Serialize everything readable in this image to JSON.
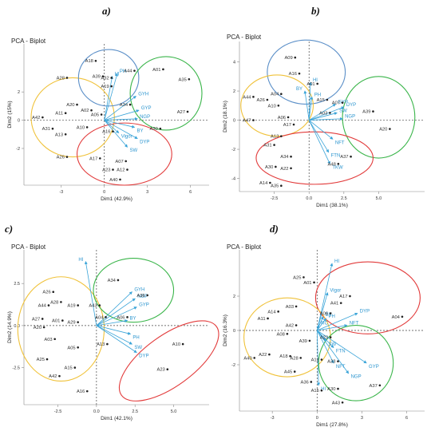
{
  "chart_data": [
    {
      "type": "scatter",
      "panel_label": "a)",
      "title": "PCA - Biplot",
      "xlabel": "Dim1 (42.9%)",
      "ylabel": "Dim2 (15%)",
      "xlim": [
        -5.6,
        7.3
      ],
      "ylim": [
        -4.6,
        5.4
      ],
      "xticks": [
        -3,
        0,
        3,
        6
      ],
      "yticks": [
        -2,
        0,
        2
      ],
      "x_tick_labels": [
        "-3",
        "0",
        "3",
        "6"
      ],
      "y_tick_labels": [
        "-2",
        "0",
        "2"
      ],
      "points": [
        {
          "label": "A18",
          "x": -0.6,
          "y": 4.2
        },
        {
          "label": "A39",
          "x": -0.1,
          "y": 3.1
        },
        {
          "label": "A32",
          "x": 0.5,
          "y": 3.0
        },
        {
          "label": "A19",
          "x": 0.5,
          "y": 2.4
        },
        {
          "label": "A28",
          "x": -2.6,
          "y": 3.0
        },
        {
          "label": "A44",
          "x": 2.1,
          "y": 3.5
        },
        {
          "label": "A01",
          "x": 4.1,
          "y": 3.6
        },
        {
          "label": "A35",
          "x": 5.9,
          "y": 2.9
        },
        {
          "label": "A27",
          "x": 5.8,
          "y": 0.6
        },
        {
          "label": "A34",
          "x": 1.8,
          "y": 1.1
        },
        {
          "label": "A30",
          "x": 3.9,
          "y": -0.6
        },
        {
          "label": "A20",
          "x": -1.9,
          "y": 1.1
        },
        {
          "label": "A11",
          "x": -2.7,
          "y": 0.5
        },
        {
          "label": "A02",
          "x": -0.9,
          "y": 0.7
        },
        {
          "label": "A05",
          "x": -0.2,
          "y": 0.4
        },
        {
          "label": "A42",
          "x": -4.3,
          "y": 0.2
        },
        {
          "label": "A31",
          "x": -3.6,
          "y": -0.6
        },
        {
          "label": "A13",
          "x": -2.7,
          "y": -1.0
        },
        {
          "label": "A10",
          "x": -1.2,
          "y": -0.5
        },
        {
          "label": "A26",
          "x": -2.6,
          "y": -2.6
        },
        {
          "label": "A16",
          "x": 0.6,
          "y": -0.8
        },
        {
          "label": "A17",
          "x": -0.3,
          "y": -2.7
        },
        {
          "label": "A23",
          "x": 0.6,
          "y": -3.5
        },
        {
          "label": "A07",
          "x": 1.5,
          "y": -2.9
        },
        {
          "label": "A12",
          "x": 1.6,
          "y": -3.5
        },
        {
          "label": "A40",
          "x": 1.1,
          "y": -4.2
        }
      ],
      "vectors": [
        {
          "label": "HI",
          "x": 0.55,
          "y": 3.1
        },
        {
          "label": "PH",
          "x": 0.9,
          "y": 3.3
        },
        {
          "label": "GYH",
          "x": 2.2,
          "y": 1.7
        },
        {
          "label": "GYP",
          "x": 2.4,
          "y": 0.7
        },
        {
          "label": "NGP",
          "x": 2.3,
          "y": 0.1
        },
        {
          "label": "BY",
          "x": 2.1,
          "y": -0.5
        },
        {
          "label": "Vigor",
          "x": 1.0,
          "y": -0.9
        },
        {
          "label": "DYP",
          "x": 2.3,
          "y": -1.3
        },
        {
          "label": "SW",
          "x": 1.6,
          "y": -1.9
        }
      ],
      "groups": [
        {
          "color": "#f0c23a",
          "center": [
            -2.2,
            0.2
          ],
          "radii": [
            2.9,
            2.8
          ]
        },
        {
          "color": "#5b8fc8",
          "center": [
            0.3,
            3.0
          ],
          "radii": [
            2.1,
            2.0
          ]
        },
        {
          "color": "#3ab54a",
          "center": [
            4.3,
            1.9
          ],
          "radii": [
            2.5,
            2.6
          ]
        },
        {
          "color": "#e23b3b",
          "center": [
            1.4,
            -2.4
          ],
          "radii": [
            3.3,
            2.2
          ]
        }
      ]
    },
    {
      "type": "scatter",
      "panel_label": "b)",
      "title": "PCA - Biplot",
      "xlabel": "Dim1 (38.1%)",
      "ylabel": "Dim2 (18.1%)",
      "xlim": [
        -5.0,
        8.3
      ],
      "ylim": [
        -4.9,
        5.4
      ],
      "xticks": [
        -2.5,
        0.0,
        2.5,
        5.0
      ],
      "yticks": [
        -4,
        -2,
        0,
        2,
        4
      ],
      "x_tick_labels": [
        "-2.5",
        "0.0",
        "2.5",
        "5.0"
      ],
      "y_tick_labels": [
        "-4",
        "-2",
        "0",
        "2",
        "4"
      ],
      "points": [
        {
          "label": "A09",
          "x": -1.0,
          "y": 4.3
        },
        {
          "label": "A16",
          "x": -0.7,
          "y": 3.2
        },
        {
          "label": "A01",
          "x": 0.6,
          "y": 2.5
        },
        {
          "label": "A44",
          "x": -4.0,
          "y": 1.6
        },
        {
          "label": "A26",
          "x": -3.0,
          "y": 1.4
        },
        {
          "label": "A10",
          "x": -2.2,
          "y": 1.0
        },
        {
          "label": "A04",
          "x": -2.0,
          "y": 1.8
        },
        {
          "label": "A15",
          "x": 1.3,
          "y": 1.4
        },
        {
          "label": "A07",
          "x": 2.4,
          "y": 1.2
        },
        {
          "label": "A03",
          "x": 1.5,
          "y": 0.5
        },
        {
          "label": "A06",
          "x": -1.5,
          "y": 0.2
        },
        {
          "label": "A17",
          "x": -1.1,
          "y": -0.3
        },
        {
          "label": "A47",
          "x": -4.0,
          "y": 0.0
        },
        {
          "label": "A39",
          "x": 4.6,
          "y": 0.6
        },
        {
          "label": "A20",
          "x": 5.8,
          "y": -0.6
        },
        {
          "label": "A13",
          "x": -2.0,
          "y": -1.1
        },
        {
          "label": "A31",
          "x": -2.5,
          "y": -1.7
        },
        {
          "label": "A34",
          "x": -1.3,
          "y": -2.5
        },
        {
          "label": "A30",
          "x": -2.4,
          "y": -3.2
        },
        {
          "label": "A22",
          "x": -1.3,
          "y": -3.3
        },
        {
          "label": "A37",
          "x": 3.0,
          "y": -2.5
        },
        {
          "label": "A48",
          "x": 2.1,
          "y": -3.0
        },
        {
          "label": "A14",
          "x": -2.8,
          "y": -4.3
        },
        {
          "label": "A35",
          "x": -2.0,
          "y": -4.5
        }
      ],
      "vectors": [
        {
          "label": "HI",
          "x": 0.1,
          "y": 2.6
        },
        {
          "label": "BY",
          "x": -0.3,
          "y": 2.0
        },
        {
          "label": "PH",
          "x": 0.2,
          "y": 1.6
        },
        {
          "label": "GYP",
          "x": 1.9,
          "y": 1.1
        },
        {
          "label": "DYP",
          "x": 2.5,
          "y": 0.9
        },
        {
          "label": "SW",
          "x": 2.0,
          "y": 0.5
        },
        {
          "label": "NGP",
          "x": 2.4,
          "y": 0.1
        },
        {
          "label": "NFT",
          "x": 1.7,
          "y": -1.3
        },
        {
          "label": "FTN",
          "x": 1.4,
          "y": -2.2
        },
        {
          "label": "TKW",
          "x": 1.5,
          "y": -3.0
        }
      ],
      "groups": [
        {
          "color": "#5b8fc8",
          "center": [
            -0.2,
            3.3
          ],
          "radii": [
            2.8,
            2.2
          ]
        },
        {
          "color": "#f0c23a",
          "center": [
            -2.3,
            1.0
          ],
          "radii": [
            2.6,
            2.1
          ]
        },
        {
          "color": "#3ab54a",
          "center": [
            5.0,
            0.2
          ],
          "radii": [
            2.6,
            2.8
          ]
        },
        {
          "color": "#e23b3b",
          "center": [
            0.4,
            -2.6
          ],
          "radii": [
            4.2,
            1.8
          ]
        }
      ]
    },
    {
      "type": "scatter",
      "panel_label": "c)",
      "title": "PCA - Biplot",
      "xlabel": "Dim1 (42.1%)",
      "ylabel": "Dim2 (14.9%)",
      "xlim": [
        -4.7,
        7.3
      ],
      "ylim": [
        -4.7,
        4.5
      ],
      "xticks": [
        -2.5,
        0.0,
        2.5,
        5.0
      ],
      "yticks": [
        -2.5,
        0.0,
        2.5
      ],
      "x_tick_labels": [
        "-2.5",
        "0.0",
        "2.5",
        "5.0"
      ],
      "y_tick_labels": [
        "-2.5",
        "0.0",
        "2.5"
      ],
      "points": [
        {
          "label": "A34",
          "x": 1.4,
          "y": 2.7
        },
        {
          "label": "A36",
          "x": 3.3,
          "y": 1.8
        },
        {
          "label": "A26",
          "x": -2.8,
          "y": 2.0
        },
        {
          "label": "A44",
          "x": -3.1,
          "y": 1.2
        },
        {
          "label": "A28",
          "x": -2.3,
          "y": 1.4
        },
        {
          "label": "A19",
          "x": -1.2,
          "y": 1.2
        },
        {
          "label": "A43",
          "x": 0.2,
          "y": 1.2
        },
        {
          "label": "A27",
          "x": -3.5,
          "y": 0.4
        },
        {
          "label": "A20",
          "x": -3.4,
          "y": -0.1
        },
        {
          "label": "A01",
          "x": -2.2,
          "y": 0.3
        },
        {
          "label": "A29",
          "x": -1.2,
          "y": 0.2
        },
        {
          "label": "A04",
          "x": 0.6,
          "y": 0.5
        },
        {
          "label": "A06",
          "x": 2.0,
          "y": 0.5
        },
        {
          "label": "A03",
          "x": -2.7,
          "y": -0.8
        },
        {
          "label": "A05",
          "x": -1.2,
          "y": -1.3
        },
        {
          "label": "A13",
          "x": 0.7,
          "y": -1.1
        },
        {
          "label": "A25",
          "x": -3.2,
          "y": -2.0
        },
        {
          "label": "A15",
          "x": -1.4,
          "y": -2.5
        },
        {
          "label": "A42",
          "x": -2.4,
          "y": -3.0
        },
        {
          "label": "A16",
          "x": -0.6,
          "y": -3.9
        },
        {
          "label": "A10",
          "x": 5.6,
          "y": -1.1
        },
        {
          "label": "A23",
          "x": 4.6,
          "y": -2.6
        }
      ],
      "vectors": [
        {
          "label": "HI",
          "x": -0.7,
          "y": 3.8
        },
        {
          "label": "GYH",
          "x": 2.3,
          "y": 2.0
        },
        {
          "label": "NGP",
          "x": 2.5,
          "y": 1.6
        },
        {
          "label": "GYP",
          "x": 2.6,
          "y": 1.1
        },
        {
          "label": "BY",
          "x": 2.0,
          "y": 0.3
        },
        {
          "label": "PH",
          "x": 2.2,
          "y": -0.5
        },
        {
          "label": "SW",
          "x": 2.3,
          "y": -1.1
        },
        {
          "label": "DYP",
          "x": 2.6,
          "y": -1.6
        }
      ],
      "groups": [
        {
          "color": "#f0c23a",
          "center": [
            -2.3,
            -0.2
          ],
          "radii": [
            2.8,
            3.1
          ]
        },
        {
          "color": "#3ab54a",
          "center": [
            2.4,
            2.1
          ],
          "radii": [
            2.6,
            1.9
          ]
        },
        {
          "color": "#e23b3b",
          "center": [
            4.7,
            -2.1
          ],
          "radii": [
            3.8,
            1.5
          ],
          "rotate": -36
        }
      ]
    },
    {
      "type": "scatter",
      "panel_label": "d)",
      "title": "PCA - Biplot",
      "xlabel": "Dim1 (27.8%)",
      "ylabel": "Dim2 (16.3%)",
      "xlim": [
        -5.2,
        7.2
      ],
      "ylim": [
        -4.7,
        4.7
      ],
      "xticks": [
        -3,
        0,
        3,
        6
      ],
      "yticks": [
        -2,
        0,
        2
      ],
      "x_tick_labels": [
        "-3",
        "0",
        "3",
        "6"
      ],
      "y_tick_labels": [
        "-2",
        "0",
        "2"
      ],
      "points": [
        {
          "label": "A25",
          "x": -0.9,
          "y": 3.1
        },
        {
          "label": "A01",
          "x": -0.2,
          "y": 2.8
        },
        {
          "label": "A17",
          "x": 2.2,
          "y": 2.0
        },
        {
          "label": "A41",
          "x": 1.6,
          "y": 1.6
        },
        {
          "label": "A03",
          "x": -1.4,
          "y": 1.4
        },
        {
          "label": "A14",
          "x": -2.6,
          "y": 1.1
        },
        {
          "label": "A11",
          "x": -3.3,
          "y": 0.7
        },
        {
          "label": "A06",
          "x": 0.9,
          "y": 1.0
        },
        {
          "label": "A04",
          "x": 5.7,
          "y": 0.8
        },
        {
          "label": "A42",
          "x": -1.4,
          "y": 0.3
        },
        {
          "label": "A08",
          "x": -2.0,
          "y": -0.2
        },
        {
          "label": "A39",
          "x": -0.5,
          "y": -0.6
        },
        {
          "label": "A23",
          "x": 0.9,
          "y": -0.4
        },
        {
          "label": "A40",
          "x": -4.2,
          "y": -1.6
        },
        {
          "label": "A22",
          "x": -3.2,
          "y": -1.4
        },
        {
          "label": "A18",
          "x": -1.8,
          "y": -1.5
        },
        {
          "label": "A28",
          "x": -1.1,
          "y": -1.6
        },
        {
          "label": "A12",
          "x": 0.3,
          "y": -1.7
        },
        {
          "label": "A33",
          "x": 1.4,
          "y": -1.8
        },
        {
          "label": "A45",
          "x": -1.5,
          "y": -2.4
        },
        {
          "label": "A36",
          "x": -0.4,
          "y": -3.0
        },
        {
          "label": "A15",
          "x": 0.3,
          "y": -3.5
        },
        {
          "label": "A30",
          "x": 1.4,
          "y": -3.4
        },
        {
          "label": "A43",
          "x": 1.7,
          "y": -4.2
        },
        {
          "label": "A37",
          "x": 4.2,
          "y": -3.2
        }
      ],
      "vectors": [
        {
          "label": "HI",
          "x": 1.0,
          "y": 3.9
        },
        {
          "label": "Vigor",
          "x": 0.7,
          "y": 2.2
        },
        {
          "label": "DYP",
          "x": 2.7,
          "y": 1.0
        },
        {
          "label": "BY",
          "x": 0.4,
          "y": 0.8
        },
        {
          "label": "PH",
          "x": 0.6,
          "y": 0.7
        },
        {
          "label": "NFT",
          "x": 2.0,
          "y": 0.3
        },
        {
          "label": "RC",
          "x": 0.1,
          "y": 0.3
        },
        {
          "label": "SW",
          "x": 0.6,
          "y": -0.6
        },
        {
          "label": "FTN",
          "x": 1.1,
          "y": -1.0
        },
        {
          "label": "NFT",
          "x": 1.1,
          "y": -1.9
        },
        {
          "label": "GYP",
          "x": 3.3,
          "y": -1.9
        },
        {
          "label": "NGP",
          "x": 2.1,
          "y": -2.5
        },
        {
          "label": "HI",
          "x": 0.1,
          "y": -3.2
        }
      ],
      "groups": [
        {
          "color": "#e23b3b",
          "center": [
            3.4,
            1.9
          ],
          "radii": [
            3.5,
            2.1
          ]
        },
        {
          "color": "#f0c23a",
          "center": [
            -2.0,
            -0.4
          ],
          "radii": [
            2.9,
            2.3
          ]
        },
        {
          "color": "#3ab54a",
          "center": [
            2.6,
            -1.9
          ],
          "radii": [
            2.5,
            2.2
          ]
        }
      ]
    }
  ]
}
